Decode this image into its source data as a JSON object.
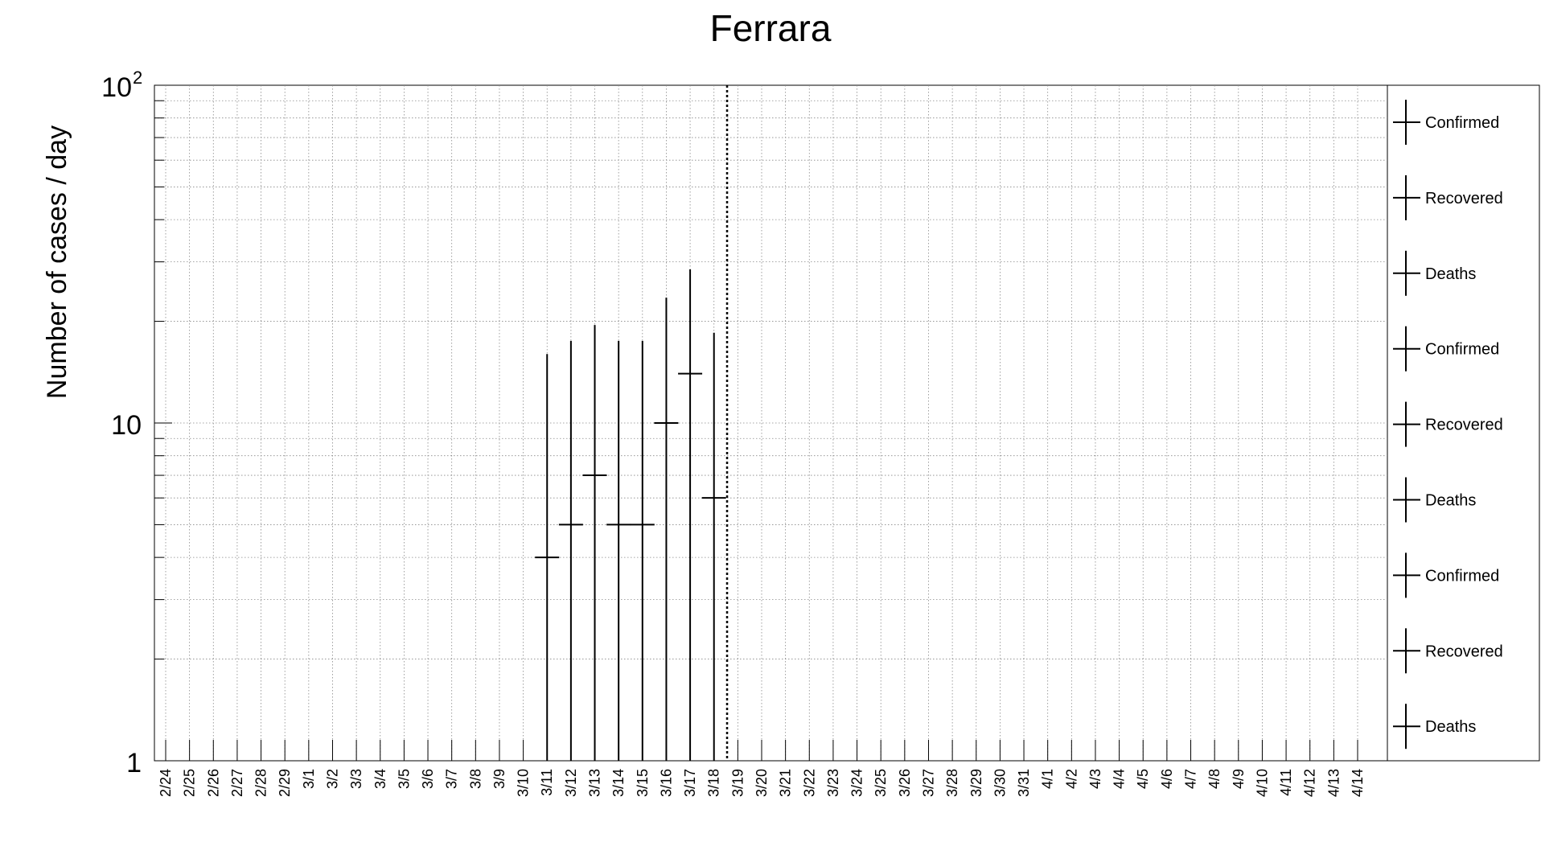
{
  "chart_data": {
    "type": "scatter",
    "title": "Ferrara",
    "xlabel": "",
    "ylabel": "Number of cases / day",
    "yscale": "log",
    "ylim": [
      1,
      100
    ],
    "y_ticks": [
      {
        "value": 1,
        "label": "1"
      },
      {
        "value": 10,
        "label": "10"
      },
      {
        "value": 100,
        "label": "10",
        "exponent": "2"
      }
    ],
    "grid": true,
    "legend_position": "right",
    "categories": [
      "2/24",
      "2/25",
      "2/26",
      "2/27",
      "2/28",
      "2/29",
      "3/1",
      "3/2",
      "3/3",
      "3/4",
      "3/5",
      "3/6",
      "3/7",
      "3/8",
      "3/9",
      "3/10",
      "3/11",
      "3/12",
      "3/13",
      "3/14",
      "3/15",
      "3/16",
      "3/17",
      "3/18",
      "3/19",
      "3/20",
      "3/21",
      "3/22",
      "3/23",
      "3/24",
      "3/25",
      "3/26",
      "3/27",
      "3/28",
      "3/29",
      "3/30",
      "3/31",
      "4/1",
      "4/2",
      "4/3",
      "4/4",
      "4/5",
      "4/6",
      "4/7",
      "4/8",
      "4/9",
      "4/10",
      "4/11",
      "4/12",
      "4/13",
      "4/14"
    ],
    "marker_line_after": "3/18",
    "series": [
      {
        "name": "Confirmed",
        "color": "#000000",
        "points": [
          {
            "x": "3/11",
            "y": 4,
            "y_low": 1,
            "y_high": 16
          },
          {
            "x": "3/12",
            "y": 5,
            "y_low": 1,
            "y_high": 17.5
          },
          {
            "x": "3/13",
            "y": 7,
            "y_low": 1,
            "y_high": 19.5
          },
          {
            "x": "3/14",
            "y": 5,
            "y_low": 1,
            "y_high": 17.5
          },
          {
            "x": "3/15",
            "y": 5,
            "y_low": 1,
            "y_high": 17.5
          },
          {
            "x": "3/16",
            "y": 10,
            "y_low": 1,
            "y_high": 23.5
          },
          {
            "x": "3/17",
            "y": 14,
            "y_low": 1,
            "y_high": 28.5
          },
          {
            "x": "3/18",
            "y": 6,
            "y_low": 1,
            "y_high": 18.5
          }
        ]
      }
    ],
    "legend": [
      "Confirmed",
      "Recovered",
      "Deaths",
      "Confirmed",
      "Recovered",
      "Deaths",
      "Confirmed",
      "Recovered",
      "Deaths"
    ]
  }
}
